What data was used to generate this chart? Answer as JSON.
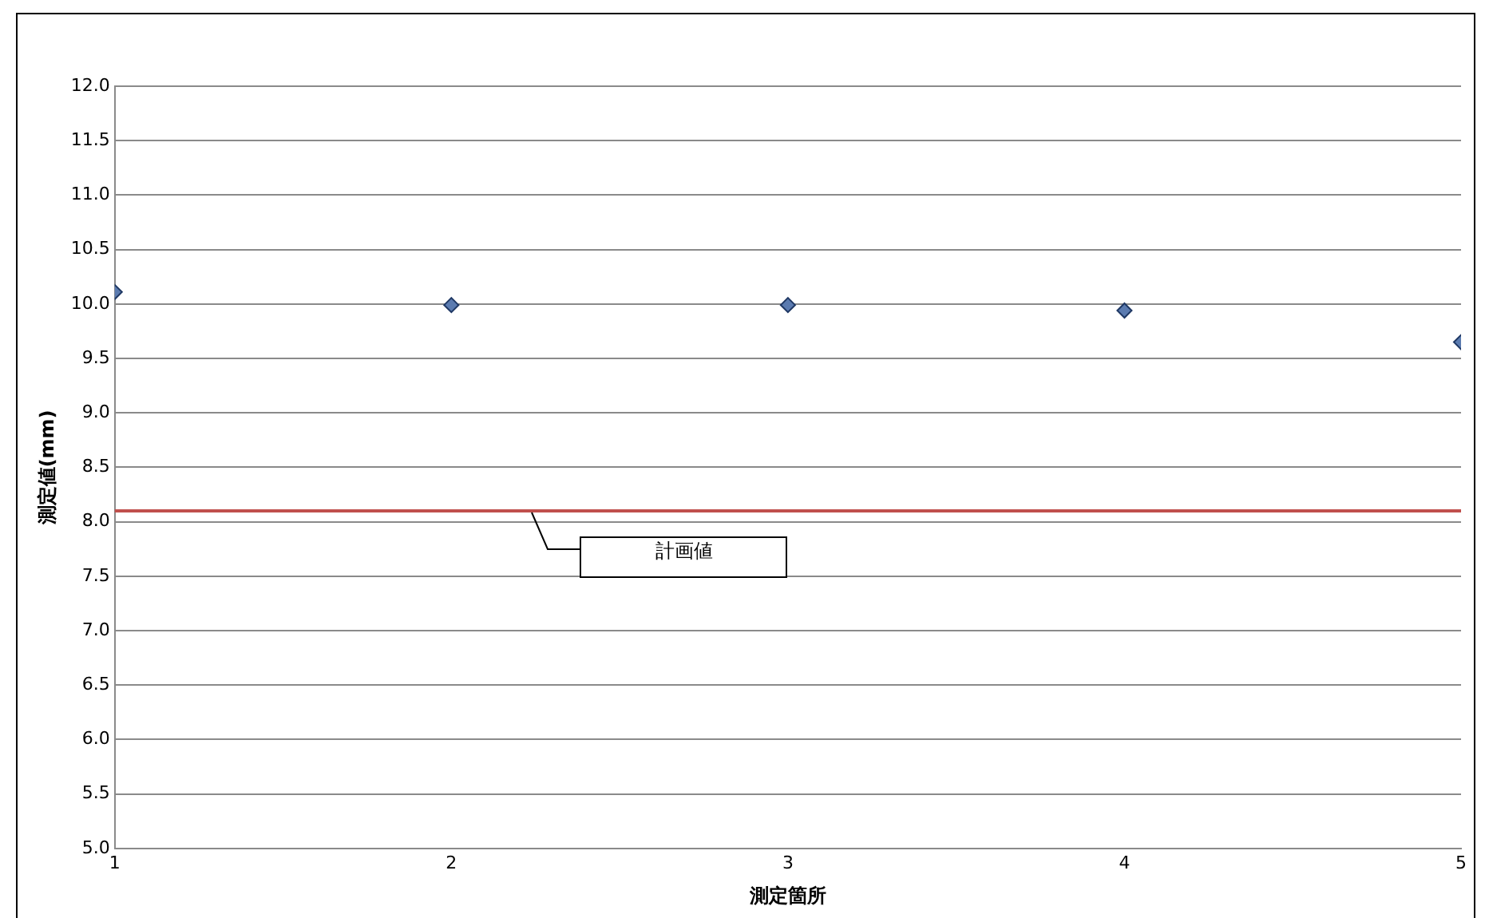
{
  "chart_data": {
    "type": "scatter",
    "xlabel": "測定箇所",
    "ylabel": "測定値(mm)",
    "x": [
      1,
      2,
      3,
      4,
      5
    ],
    "series": [
      {
        "color": "#5b7bb0",
        "values": [
          10.11,
          9.99,
          9.99,
          9.94,
          9.65
        ]
      }
    ],
    "xlim": [
      1,
      5
    ],
    "xticks": [
      1,
      2,
      3,
      4,
      5
    ],
    "ylim": [
      5,
      12
    ],
    "yticks": [
      {
        "value": 5,
        "label": "5.0"
      },
      {
        "value": 5.5,
        "label": "5.5"
      },
      {
        "value": 6,
        "label": "6.0"
      },
      {
        "value": 6.5,
        "label": "6.5"
      },
      {
        "value": 7,
        "label": "7.0"
      },
      {
        "value": 7.5,
        "label": "7.5"
      },
      {
        "value": 8,
        "label": "8.0"
      },
      {
        "value": 8.5,
        "label": "8.5"
      },
      {
        "value": 9,
        "label": "9.0"
      },
      {
        "value": 9.5,
        "label": "9.5"
      },
      {
        "value": 10,
        "label": "10.0"
      },
      {
        "value": 10.5,
        "label": "10.5"
      },
      {
        "value": 11,
        "label": "11.0"
      },
      {
        "value": 11.5,
        "label": "11.5"
      },
      {
        "value": 12,
        "label": "12.0"
      }
    ],
    "ref_lines": [
      {
        "axis": "y",
        "value": 8.1,
        "label": "計画値",
        "color": "#c0504d"
      }
    ],
    "grid": "y",
    "legend": false,
    "marker": "diamond"
  }
}
